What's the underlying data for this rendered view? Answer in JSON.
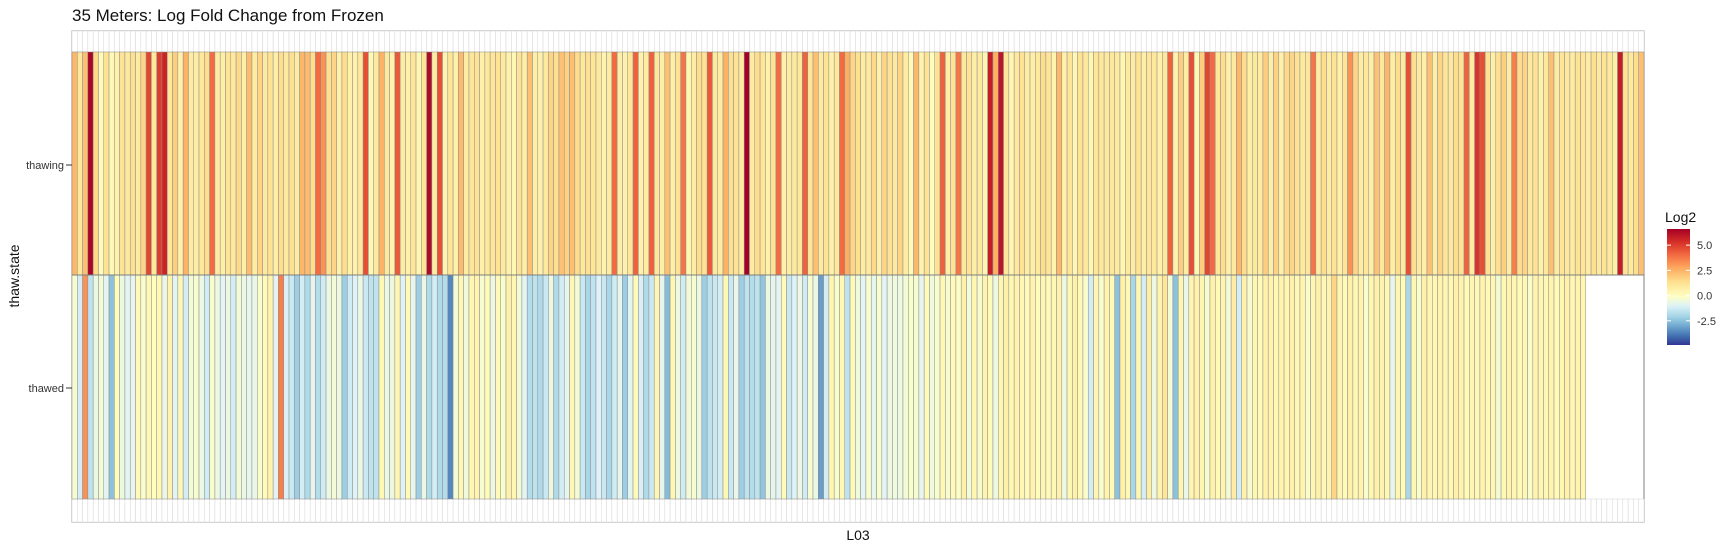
{
  "chart_data": {
    "type": "heatmap",
    "title": "35 Meters: Log Fold Change from Frozen",
    "xlabel": "L03",
    "ylabel": "thaw.state",
    "rows": [
      "thawing",
      "thawed"
    ],
    "legend": {
      "title": "Log2",
      "ticks": [
        "5.0",
        "2.5",
        "0.0",
        "-2.5"
      ],
      "tick_values": [
        5.0,
        2.5,
        0.0,
        -2.5
      ],
      "range": [
        -4.9,
        6.6
      ],
      "position": "right"
    },
    "colorscale": [
      "#313695",
      "#4575b4",
      "#74add1",
      "#abd9e9",
      "#e0f3f8",
      "#ffffbf",
      "#fee090",
      "#fdae61",
      "#f46d43",
      "#d73027",
      "#a50026"
    ],
    "grid": false,
    "values": {
      "thawing": [
        2.4,
        1.0,
        2.2,
        6.5,
        1.5,
        0.2,
        1.2,
        0.3,
        0.6,
        1.2,
        0.9,
        1.3,
        0.8,
        1.6,
        4.8,
        1.0,
        5.0,
        5.6,
        1.0,
        1.8,
        0.6,
        2.5,
        0.8,
        0.8,
        1.0,
        1.4,
        4.0,
        0.8,
        0.7,
        1.2,
        0.9,
        1.5,
        0.7,
        2.3,
        0.8,
        1.6,
        0.9,
        1.2,
        0.7,
        1.4,
        0.9,
        1.3,
        0.8,
        2.4,
        2.3,
        1.4,
        4.0,
        3.2,
        1.3,
        1.6,
        0.6,
        1.4,
        0.6,
        0.6,
        1.0,
        4.6,
        0.3,
        0.9,
        2.5,
        1.0,
        0.5,
        4.4,
        0.8,
        0.6,
        1.1,
        0.4,
        1.1,
        6.3,
        0.8,
        4.6,
        0.5,
        1.1,
        0.6,
        2.3,
        0.8,
        1.1,
        1.2,
        0.6,
        1.0,
        1.1,
        1.2,
        0.9,
        0.6,
        0.3,
        1.2,
        0.7,
        2.2,
        0.7,
        0.6,
        0.9,
        1.6,
        1.3,
        2.1,
        1.7,
        2.2,
        1.4,
        1.0,
        1.3,
        1.1,
        0.9,
        0.5,
        0.8,
        4.0,
        0.7,
        0.6,
        1.0,
        4.2,
        0.6,
        0.8,
        4.2,
        1.0,
        0.7,
        2.2,
        0.7,
        1.2,
        3.8,
        0.4,
        0.8,
        1.4,
        1.2,
        4.4,
        1.0,
        0.8,
        2.5,
        1.3,
        1.2,
        0.8,
        6.6,
        0.8,
        1.4,
        1.1,
        0.6,
        1.2,
        4.0,
        0.6,
        0.8,
        0.9,
        1.0,
        4.2,
        1.1,
        2.2,
        0.9,
        1.2,
        0.6,
        1.0,
        4.0,
        2.6,
        1.6,
        1.3,
        0.8,
        0.9,
        1.5,
        0.6,
        1.6,
        1.2,
        0.9,
        1.6,
        0.8,
        0.2,
        2.4,
        0.5,
        1.2,
        0.1,
        1.2,
        4.2,
        0.6,
        1.2,
        3.8,
        1.0,
        1.2,
        0.7,
        0.9,
        0.4,
        5.8,
        2.6,
        6.0,
        1.0,
        0.4,
        1.0,
        1.2,
        0.8,
        0.7,
        0.9,
        1.4,
        1.1,
        0.5,
        2.4,
        0.6,
        1.1,
        0.4,
        1.2,
        1.0,
        0.4,
        1.1,
        1.0,
        0.9,
        1.0,
        0.9,
        0.4,
        0.9,
        0.8,
        1.2,
        0.7,
        1.1,
        1.0,
        0.6,
        1.0,
        4.2,
        0.5,
        1.8,
        0.8,
        4.6,
        0.4,
        1.8,
        4.8,
        4.0,
        1.0,
        1.4,
        0.6,
        0.9,
        2.4,
        1.4,
        0.7,
        1.0,
        0.8,
        1.8,
        0.7,
        1.7,
        0.6,
        1.5,
        1.6,
        1.2,
        0.9,
        1.0,
        3.8,
        0.8,
        1.4,
        0.8,
        1.2,
        0.6,
        1.1,
        3.2,
        1.6,
        0.8,
        1.0,
        0.7,
        2.1,
        1.0,
        2.4,
        0.7,
        1.4,
        0.9,
        4.6,
        1.3,
        0.9,
        0.7,
        2.2,
        0.7,
        1.6,
        1.1,
        0.9,
        1.4,
        1.2,
        4.2,
        0.8,
        5.2,
        4.6,
        1.2,
        0.7,
        1.3,
        1.8,
        0.8,
        3.6,
        1.4,
        1.6,
        0.9,
        1.2,
        0.6,
        1.0,
        2.2,
        0.8,
        1.1,
        1.0,
        0.8,
        1.2,
        1.1,
        0.8,
        1.3,
        0.9,
        1.2,
        1.0,
        0.7,
        5.8,
        1.2,
        0.9,
        1.4,
        2.2
      ],
      "thawed": [
        -0.3,
        -1.2,
        3.2,
        -1.6,
        -0.6,
        -0.4,
        -0.9,
        -2.5,
        0.1,
        -0.6,
        -0.9,
        -0.8,
        0.2,
        -0.2,
        0.3,
        0.0,
        0.3,
        -0.7,
        0.5,
        -0.9,
        0.3,
        -1.2,
        -0.4,
        -0.3,
        -0.6,
        -1.3,
        -0.2,
        -0.6,
        -0.9,
        -0.6,
        -1.2,
        -0.4,
        -0.6,
        -0.8,
        -0.7,
        -0.2,
        0.2,
        0.5,
        -0.9,
        3.6,
        -1.1,
        -1.4,
        -2.2,
        -1.2,
        -1.9,
        -0.8,
        -1.8,
        -1.3,
        -0.6,
        -0.4,
        -0.6,
        -2.2,
        -1.3,
        -1.0,
        -0.6,
        -1.4,
        -1.6,
        -1.6,
        0.3,
        -0.6,
        -0.6,
        0.4,
        -1.0,
        0.2,
        -0.8,
        -2.2,
        -0.7,
        -1.9,
        -1.2,
        -1.9,
        -1.8,
        -3.6,
        -0.4,
        0.3,
        -0.5,
        0.4,
        0.5,
        -0.3,
        0.2,
        -0.6,
        0.2,
        -0.2,
        0.6,
        0.4,
        -0.4,
        -0.9,
        -1.8,
        -1.6,
        -1.9,
        -1.4,
        -0.6,
        -1.9,
        -1.2,
        -0.8,
        0.3,
        -0.4,
        -1.4,
        -2.0,
        -1.6,
        -1.0,
        -1.4,
        -2.0,
        -1.3,
        -0.8,
        -2.2,
        -0.9,
        0.2,
        -1.1,
        -1.9,
        -1.4,
        0.4,
        -0.8,
        -2.6,
        0.4,
        -0.6,
        -1.3,
        -0.4,
        -0.3,
        -0.6,
        -2.2,
        -1.6,
        -1.4,
        -1.2,
        0.3,
        -1.4,
        -0.7,
        -2.2,
        -1.6,
        -1.8,
        -1.6,
        -2.4,
        -0.6,
        -0.8,
        -0.9,
        0.2,
        -1.4,
        -1.0,
        -0.6,
        -1.3,
        -0.3,
        -0.6,
        -3.2,
        -1.2,
        0.4,
        -0.2,
        0.3,
        -1.6,
        0.2,
        -0.5,
        -0.9,
        -0.2,
        -0.8,
        -0.2,
        -0.9,
        -0.6,
        -0.5,
        -0.6,
        -0.4,
        -0.2,
        -0.3,
        -0.8,
        0.2,
        -0.5,
        -0.2,
        0.3,
        -0.3,
        0.2,
        -0.1,
        0.6,
        -0.4,
        0.4,
        -0.3,
        0.5,
        0.2,
        -0.6,
        0.4,
        0.6,
        0.3,
        0.5,
        0.3,
        0.2,
        0.5,
        0.1,
        0.4,
        0.2,
        0.3,
        0.6,
        -0.6,
        0.3,
        0.6,
        0.2,
        -0.2,
        -1.2,
        0.4,
        -0.2,
        0.5,
        0.2,
        -2.5,
        0.6,
        0.3,
        -2.0,
        0.4,
        -1.2,
        0.7,
        -0.6,
        0.5,
        1.1,
        -0.4,
        -2.5,
        0.4,
        -0.7,
        0.5,
        0.6,
        0.4,
        -0.3,
        0.6,
        0.2,
        0.5,
        -0.4,
        0.8,
        -1.2,
        0.6,
        -0.3,
        0.4,
        0.2,
        0.6,
        0.5,
        0.3,
        0.5,
        0.4,
        0.6,
        0.3,
        0.5,
        -0.2,
        0.4,
        0.6,
        0.3,
        0.5,
        1.6,
        0.4,
        0.2,
        0.6,
        0.3,
        0.5,
        -0.2,
        0.4,
        0.6,
        0.5,
        0.3,
        -0.8,
        0.4,
        0.2,
        -2.0,
        0.4,
        -0.2,
        0.6,
        0.4,
        0.3,
        0.5,
        0.4,
        0.3,
        0.6,
        0.5,
        0.2,
        0.4,
        0.3,
        0.5,
        0.2,
        0.4,
        -0.4,
        0.3,
        0.5,
        0.4,
        0.2,
        0.3,
        -0.2,
        0.5,
        0.4,
        0.3,
        0.5,
        0.2,
        0.4,
        0.6,
        0.3,
        0.5,
        0.4
      ]
    }
  }
}
